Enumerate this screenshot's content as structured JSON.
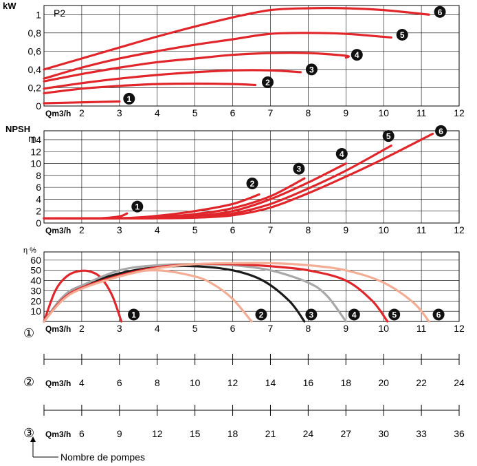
{
  "chart_data": [
    {
      "type": "line",
      "panel": "power",
      "ylabel": "kW",
      "label": "P2",
      "xlabel": "Qm3/h",
      "x_ticks": [
        "2",
        "3",
        "4",
        "5",
        "6",
        "7",
        "8",
        "9",
        "10",
        "11",
        "12"
      ],
      "y_ticks": [
        "0",
        "0,2",
        "0,4",
        "0,6",
        "0,8",
        "1"
      ],
      "xlim": [
        1,
        12
      ],
      "ylim": [
        0,
        1.1
      ],
      "series": [
        {
          "name": "1",
          "color": "#e0262a",
          "x": [
            1,
            2,
            3
          ],
          "y": [
            0.03,
            0.04,
            0.05
          ]
        },
        {
          "name": "2",
          "color": "#e0262a",
          "x": [
            1,
            2,
            3,
            4,
            5,
            6,
            6.6
          ],
          "y": [
            0.14,
            0.19,
            0.22,
            0.24,
            0.245,
            0.24,
            0.23
          ]
        },
        {
          "name": "3",
          "color": "#e0262a",
          "x": [
            1,
            2,
            3,
            4,
            5,
            6,
            7,
            7.8
          ],
          "y": [
            0.19,
            0.25,
            0.3,
            0.34,
            0.37,
            0.39,
            0.39,
            0.37
          ]
        },
        {
          "name": "4",
          "color": "#e0262a",
          "x": [
            1,
            2,
            3,
            4,
            5,
            6,
            7,
            8,
            9,
            9
          ],
          "y": [
            0.27,
            0.35,
            0.42,
            0.48,
            0.52,
            0.56,
            0.58,
            0.58,
            0.55,
            0.53
          ]
        },
        {
          "name": "5",
          "color": "#e0262a",
          "x": [
            1,
            2,
            3,
            4,
            5,
            6,
            7,
            8,
            9,
            10.2
          ],
          "y": [
            0.3,
            0.42,
            0.52,
            0.6,
            0.67,
            0.73,
            0.79,
            0.8,
            0.79,
            0.75
          ]
        },
        {
          "name": "6",
          "color": "#e0262a",
          "x": [
            1,
            2,
            3,
            4,
            5,
            6,
            7,
            8,
            9,
            10,
            11.2
          ],
          "y": [
            0.4,
            0.52,
            0.64,
            0.76,
            0.87,
            0.97,
            1.05,
            1.07,
            1.07,
            1.05,
            1.0
          ]
        }
      ]
    },
    {
      "type": "line",
      "panel": "npsh",
      "ylabel": "NPSH",
      "unit": "m",
      "xlabel": "Qm3/h",
      "x_ticks": [
        "2",
        "3",
        "4",
        "5",
        "6",
        "7",
        "8",
        "9",
        "10",
        "11",
        "12"
      ],
      "y_ticks": [
        "0",
        "2",
        "4",
        "6",
        "8",
        "10",
        "12",
        "14"
      ],
      "xlim": [
        1,
        12
      ],
      "ylim": [
        0,
        15.5
      ],
      "series": [
        {
          "name": "1",
          "color": "#e0262a",
          "x": [
            1,
            2,
            2.5,
            3,
            3.2
          ],
          "y": [
            0.8,
            0.8,
            0.8,
            1.1,
            1.6
          ]
        },
        {
          "name": "2",
          "color": "#e0262a",
          "x": [
            1,
            3,
            4,
            5,
            6,
            6.7
          ],
          "y": [
            0.8,
            0.8,
            1.2,
            2,
            3.2,
            4.8
          ]
        },
        {
          "name": "3",
          "color": "#e0262a",
          "x": [
            1,
            3,
            4,
            5,
            6,
            7,
            7.9
          ],
          "y": [
            0.8,
            0.8,
            1,
            1.5,
            2.5,
            4.5,
            7.5
          ]
        },
        {
          "name": "4",
          "color": "#e0262a",
          "x": [
            1,
            3,
            4,
            5,
            6,
            7,
            8,
            9
          ],
          "y": [
            0.8,
            0.8,
            0.9,
            1.2,
            2,
            4,
            6.8,
            10
          ]
        },
        {
          "name": "5",
          "color": "#e0262a",
          "x": [
            1,
            3,
            4,
            5,
            6,
            7,
            8,
            9,
            10.2
          ],
          "y": [
            0.8,
            0.8,
            0.8,
            1,
            1.6,
            3.2,
            5.8,
            8.8,
            13
          ]
        },
        {
          "name": "6",
          "color": "#e0262a",
          "x": [
            1,
            3,
            4,
            5,
            6,
            7,
            8,
            9,
            10,
            11.3
          ],
          "y": [
            0.8,
            0.8,
            0.8,
            0.9,
            1.3,
            2.6,
            5,
            7.8,
            10.8,
            15
          ]
        }
      ]
    },
    {
      "type": "line",
      "panel": "efficiency",
      "ylabel": "η %",
      "xlabel": "Qm3/h",
      "x_ticks": [
        "2",
        "3",
        "4",
        "5",
        "6",
        "7",
        "8",
        "9",
        "10",
        "11",
        "12"
      ],
      "y_ticks": [
        "10",
        "20",
        "30",
        "40",
        "50",
        "60"
      ],
      "xlim": [
        1,
        12
      ],
      "ylim": [
        0,
        68
      ],
      "series": [
        {
          "name": "1",
          "color": "#e0262a",
          "x": [
            1,
            1.3,
            1.6,
            1.9,
            2.2,
            2.5,
            2.8,
            3.05
          ],
          "y": [
            0,
            30,
            44,
            49,
            49,
            43,
            26,
            0
          ]
        },
        {
          "name": "2",
          "color": "#f4ad95",
          "x": [
            1,
            1.5,
            2,
            3,
            4,
            5,
            5.5,
            6,
            6.5
          ],
          "y": [
            0,
            22,
            34,
            46,
            50,
            44,
            36,
            22,
            0
          ]
        },
        {
          "name": "3",
          "color": "#1a1a1a",
          "x": [
            1,
            1.5,
            2,
            3,
            4,
            5,
            6,
            6.8,
            7.5,
            7.9
          ],
          "y": [
            0,
            24,
            35,
            47,
            53,
            54,
            50,
            40,
            20,
            0
          ]
        },
        {
          "name": "4",
          "color": "#a8a8a8",
          "x": [
            1,
            1.5,
            2,
            3,
            4,
            5,
            6,
            7,
            8,
            8.5,
            9
          ],
          "y": [
            0,
            24,
            35,
            50,
            55,
            56,
            55,
            50,
            38,
            25,
            0
          ]
        },
        {
          "name": "5",
          "color": "#e0262a",
          "x": [
            1,
            1.5,
            2,
            3,
            4,
            5,
            6,
            7,
            8,
            9,
            9.7,
            10.1
          ],
          "y": [
            0,
            22,
            33,
            45,
            53,
            56,
            56,
            54,
            50,
            40,
            20,
            0
          ]
        },
        {
          "name": "6",
          "color": "#f4ad95",
          "x": [
            1,
            1.5,
            2,
            3,
            4,
            5,
            6,
            7,
            8,
            9,
            10,
            10.8,
            11.2
          ],
          "y": [
            0,
            21,
            32,
            44,
            52,
            56,
            57,
            57,
            55,
            50,
            38,
            18,
            0
          ]
        }
      ]
    }
  ],
  "scale_rows": [
    {
      "marker": "①",
      "label": "Qm3/h",
      "ticks": [
        "2",
        "3",
        "4",
        "5",
        "6",
        "7",
        "8",
        "9",
        "10",
        "11",
        "12"
      ]
    },
    {
      "marker": "②",
      "label": "Qm3/h",
      "ticks": [
        "4",
        "6",
        "8",
        "10",
        "12",
        "14",
        "16",
        "18",
        "20",
        "22",
        "24"
      ]
    },
    {
      "marker": "③",
      "label": "Qm3/h",
      "ticks": [
        "6",
        "9",
        "12",
        "15",
        "18",
        "21",
        "24",
        "27",
        "30",
        "33",
        "36"
      ]
    }
  ],
  "footnote": "Nombre de pompes"
}
